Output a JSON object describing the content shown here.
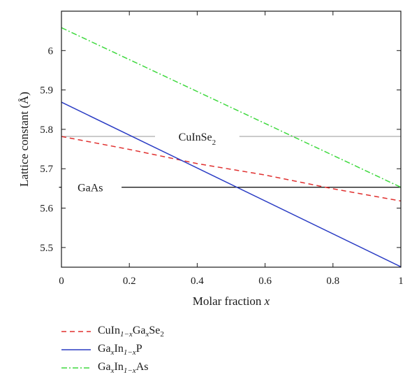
{
  "chart_data": {
    "type": "line",
    "xlabel": "Molar fraction x",
    "ylabel": "Lattice constant (Å)",
    "xlim": [
      0,
      1
    ],
    "ylim": [
      5.45,
      6.1
    ],
    "xticks": [
      0,
      0.2,
      0.4,
      0.6,
      0.8,
      1
    ],
    "xtick_labels": [
      "0",
      "0.2",
      "0.4",
      "0.6",
      "0.8",
      "1"
    ],
    "yticks": [
      5.5,
      5.6,
      5.7,
      5.8,
      5.9,
      6.0
    ],
    "ytick_labels": [
      "5.5",
      "5.6",
      "5.7",
      "5.8",
      "5.9",
      "6"
    ],
    "grid": false,
    "series": [
      {
        "name": "CuIn1−xGaxSe2",
        "name_rich": [
          [
            "CuIn",
            ""
          ],
          [
            "1−x",
            "sub"
          ],
          [
            "Ga",
            ""
          ],
          [
            "x",
            "sub"
          ],
          [
            "Se",
            ""
          ],
          [
            "2",
            "sub"
          ]
        ],
        "color": "#e0302f",
        "dash": "7 5",
        "x": [
          0,
          0.2,
          0.4,
          0.6,
          0.8,
          1
        ],
        "y": [
          5.782,
          5.749,
          5.713,
          5.684,
          5.649,
          5.618
        ]
      },
      {
        "name": "GaxIn1−xP",
        "name_rich": [
          [
            "Ga",
            ""
          ],
          [
            "x",
            "sub"
          ],
          [
            "In",
            ""
          ],
          [
            "1−x",
            "sub"
          ],
          [
            "P",
            ""
          ]
        ],
        "color": "#2a3cc4",
        "dash": "",
        "x": [
          0,
          1
        ],
        "y": [
          5.869,
          5.451
        ]
      },
      {
        "name": "GaxIn1−xAs",
        "name_rich": [
          [
            "Ga",
            ""
          ],
          [
            "x",
            "sub"
          ],
          [
            "In",
            ""
          ],
          [
            "1−x",
            "sub"
          ],
          [
            "As",
            ""
          ]
        ],
        "color": "#3fd93f",
        "dash": "8 3 2 3",
        "x": [
          0,
          1
        ],
        "y": [
          6.058,
          5.653
        ]
      }
    ],
    "reference_lines": [
      {
        "label": "CuInSe2",
        "label_rich": [
          [
            "CuInSe",
            ""
          ],
          [
            "2",
            "sub"
          ]
        ],
        "y": 5.782,
        "color": "#b4b4b4",
        "label_x": 0.4
      },
      {
        "label": "GaAs",
        "label_rich": [
          [
            "GaAs",
            ""
          ]
        ],
        "y": 5.653,
        "color": "#1a1a1a",
        "label_x": 0.085
      }
    ],
    "legend_position": "below"
  }
}
